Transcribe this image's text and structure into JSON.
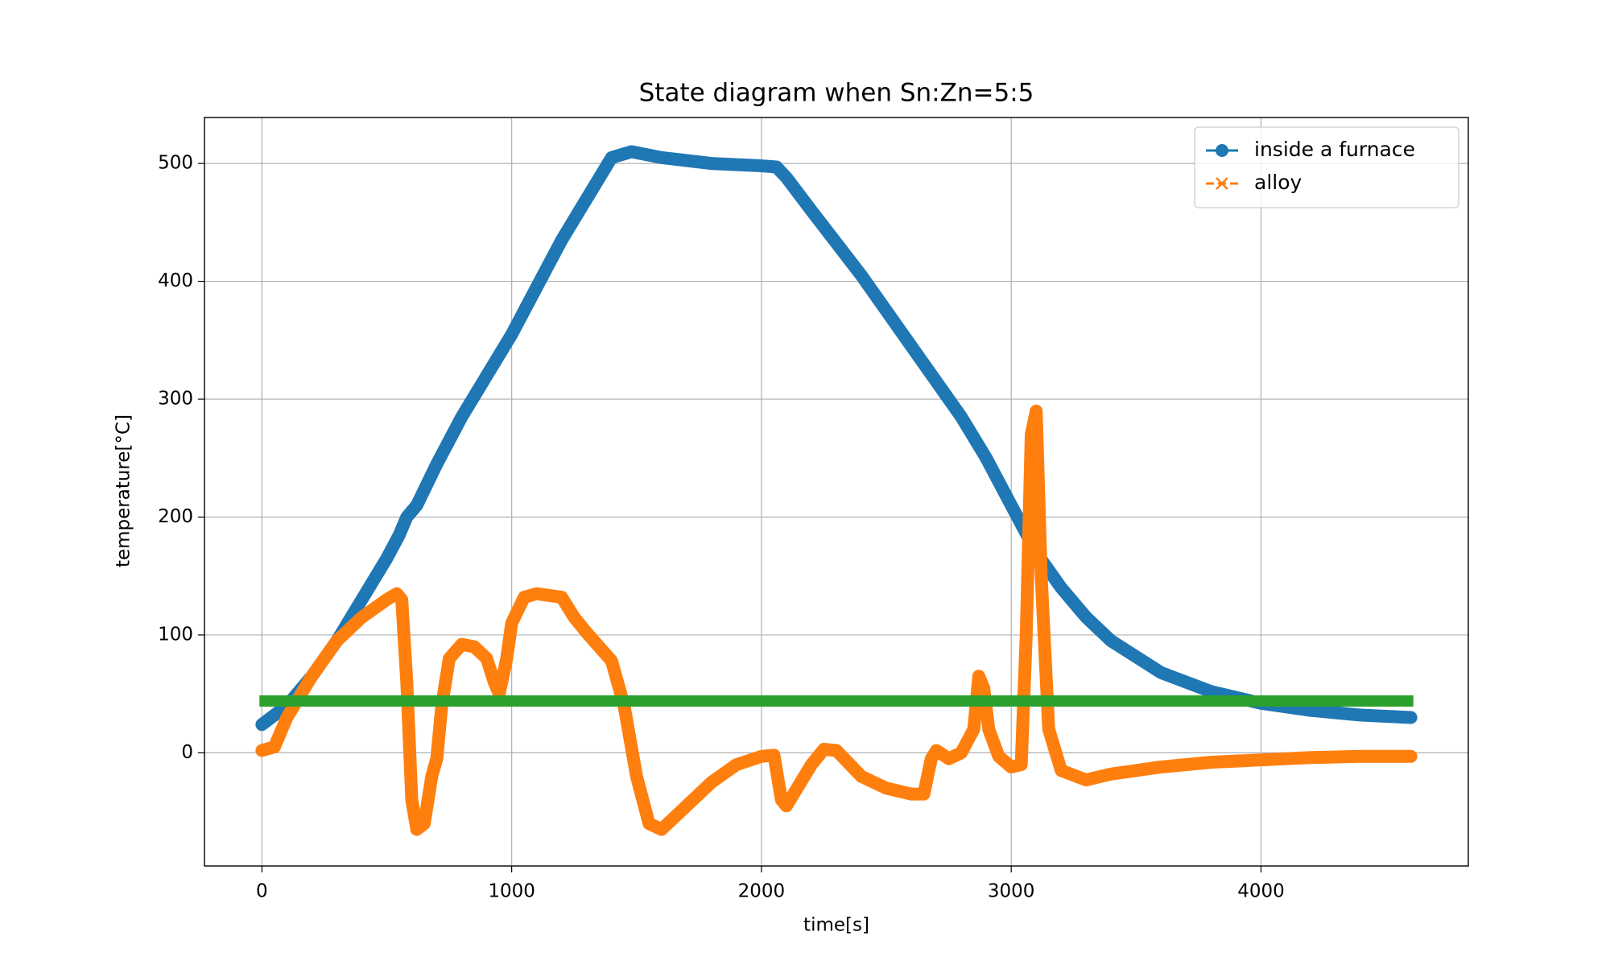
{
  "chart_data": {
    "type": "line",
    "title": "State diagram when Sn:Zn=5:5",
    "x_label": "time[s]",
    "y_label": "temperature[°C]",
    "xlim": [
      -230,
      4830
    ],
    "ylim": [
      -96,
      539
    ],
    "xticks": [
      0,
      1000,
      2000,
      3000,
      4000
    ],
    "yticks": [
      0,
      100,
      200,
      300,
      400,
      500
    ],
    "grid": true,
    "legend": "upper right",
    "series": [
      {
        "name": "inside a furnace",
        "color": "#1f77b4",
        "marker": "o",
        "linestyle": "solid",
        "x": [
          0,
          100,
          200,
          300,
          400,
          500,
          550,
          580,
          620,
          700,
          800,
          900,
          1000,
          1100,
          1200,
          1300,
          1400,
          1480,
          1600,
          1800,
          2000,
          2060,
          2100,
          2200,
          2400,
          2600,
          2800,
          2900,
          3000,
          3050,
          3100,
          3200,
          3300,
          3400,
          3600,
          3800,
          4000,
          4200,
          4400,
          4600
        ],
        "values": [
          24,
          40,
          65,
          95,
          130,
          165,
          185,
          200,
          210,
          245,
          285,
          320,
          355,
          395,
          435,
          470,
          505,
          510,
          505,
          500,
          498,
          497,
          488,
          460,
          405,
          345,
          285,
          250,
          210,
          190,
          170,
          140,
          115,
          95,
          68,
          52,
          42,
          36,
          32,
          30
        ]
      },
      {
        "name": "alloy",
        "color": "#ff7f0e",
        "marker": "x",
        "linestyle": "dashed",
        "x": [
          0,
          50,
          100,
          200,
          300,
          400,
          500,
          540,
          560,
          580,
          600,
          620,
          650,
          680,
          700,
          720,
          750,
          800,
          850,
          900,
          930,
          950,
          980,
          1000,
          1050,
          1100,
          1200,
          1250,
          1300,
          1400,
          1450,
          1500,
          1550,
          1600,
          1700,
          1800,
          1900,
          2000,
          2050,
          2080,
          2100,
          2200,
          2250,
          2300,
          2400,
          2500,
          2600,
          2650,
          2680,
          2700,
          2750,
          2800,
          2850,
          2870,
          2890,
          2910,
          2950,
          3000,
          3040,
          3060,
          3080,
          3100,
          3120,
          3150,
          3200,
          3300,
          3400,
          3600,
          3800,
          4000,
          4200,
          4400,
          4600
        ],
        "values": [
          2,
          5,
          30,
          65,
          95,
          115,
          130,
          135,
          130,
          60,
          -40,
          -65,
          -60,
          -20,
          -5,
          40,
          80,
          92,
          90,
          80,
          60,
          50,
          80,
          110,
          132,
          135,
          132,
          115,
          102,
          78,
          40,
          -20,
          -60,
          -65,
          -45,
          -25,
          -10,
          -3,
          -2,
          -40,
          -45,
          -10,
          3,
          2,
          -20,
          -30,
          -35,
          -35,
          -5,
          2,
          -5,
          0,
          20,
          65,
          55,
          20,
          -3,
          -12,
          -10,
          100,
          270,
          290,
          150,
          20,
          -15,
          -23,
          -18,
          -12,
          -8,
          -6,
          -4,
          -3,
          -3
        ]
      },
      {
        "color": "#2ca02c",
        "linestyle": "solid",
        "x": [
          -10,
          4610
        ],
        "values": [
          44,
          44
        ]
      }
    ]
  }
}
